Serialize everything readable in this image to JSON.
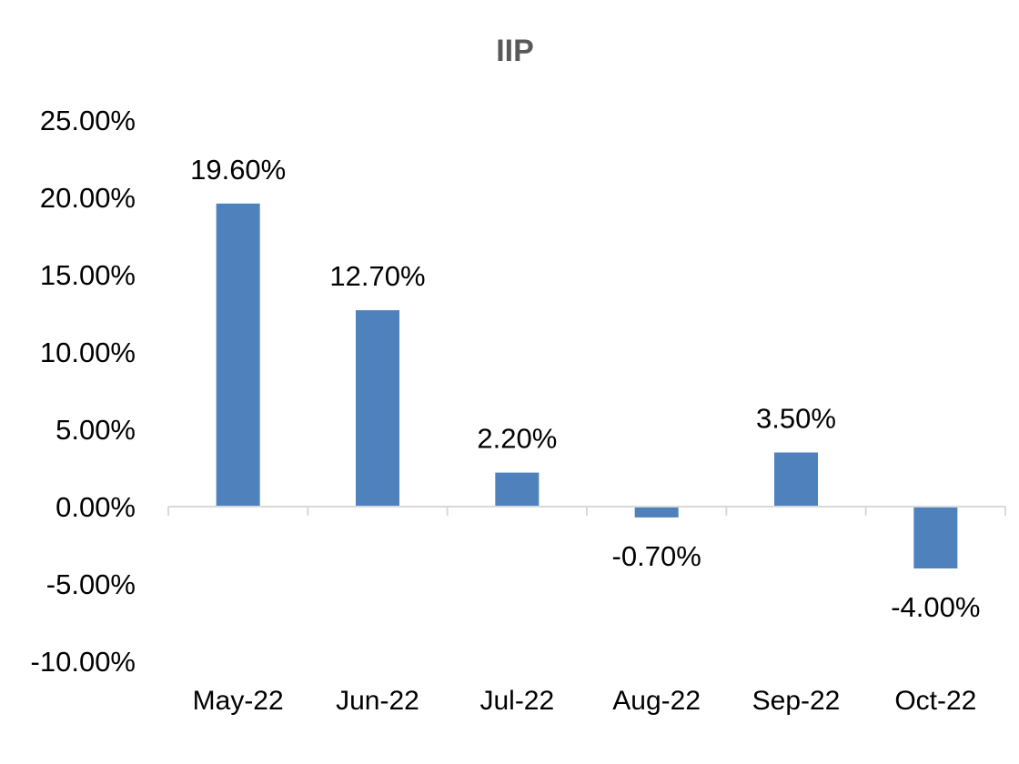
{
  "chart_data": {
    "type": "bar",
    "title": "IIP",
    "xlabel": "",
    "ylabel": "",
    "categories": [
      "May-22",
      "Jun-22",
      "Jul-22",
      "Aug-22",
      "Sep-22",
      "Oct-22"
    ],
    "values": [
      19.6,
      12.7,
      2.2,
      -0.7,
      3.5,
      -4.0
    ],
    "data_labels": [
      "19.60%",
      "12.70%",
      "2.20%",
      "-0.70%",
      "3.50%",
      "-4.00%"
    ],
    "ylim": [
      -10,
      25
    ],
    "yticks": [
      25,
      20,
      15,
      10,
      5,
      0,
      -5,
      -10
    ],
    "ytick_labels": [
      "25.00%",
      "20.00%",
      "15.00%",
      "10.00%",
      "5.00%",
      "0.00%",
      "-5.00%",
      "-10.00%"
    ],
    "grid": false,
    "legend": "none",
    "bar_color": "#4f81bd",
    "axis_color": "#d9d9d9"
  }
}
